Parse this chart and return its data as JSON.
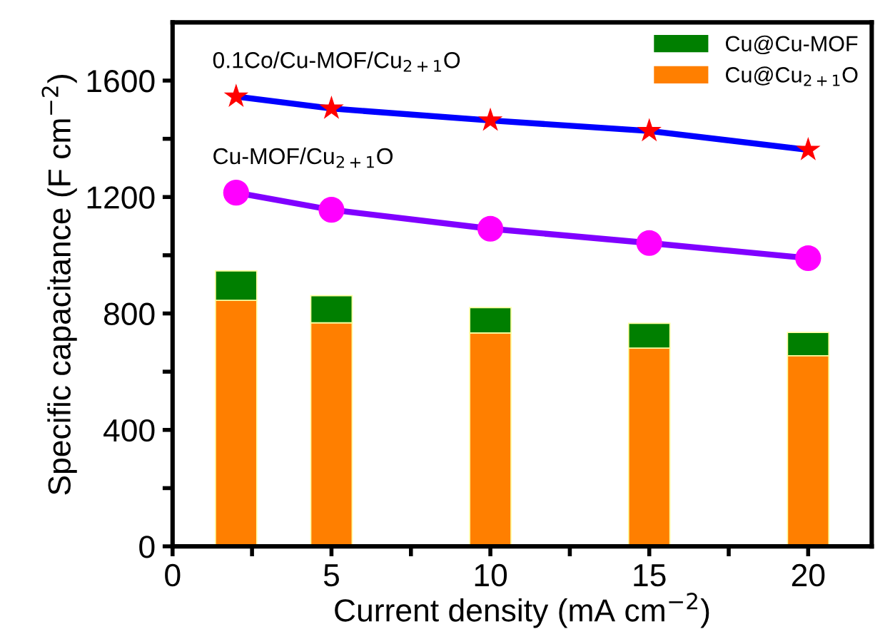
{
  "chart_data": {
    "type": "bar",
    "stacked": true,
    "xlabel": "Current density (mA cm$^{−2}$)",
    "ylabel": "Specific capacitance (F cm$^{−2}$)",
    "x": [
      2,
      5,
      10,
      15,
      20
    ],
    "series": [
      {
        "name": "Cu@Cu$_{2+1}$O",
        "color": "#ff7f00",
        "values": [
          845,
          768,
          733,
          681,
          655
        ]
      },
      {
        "name": "Cu@Cu-MOF",
        "color": "#007f00",
        "values": [
          101,
          93,
          87,
          85,
          80
        ]
      },
      {
        "name": "0.1Co/Cu-MOF/Cu$_{2+1}$O",
        "type": "line",
        "color": "#0000ff",
        "colors": [
          "#ff0000",
          "#ff0000",
          "#ff0000",
          "#ff0000",
          "#ff0000"
        ],
        "marker": "star",
        "values": [
          1545,
          1504,
          1463,
          1427,
          1362
        ]
      },
      {
        "name": "Cu-MOF/Cu$_{2+1}$O",
        "type": "line",
        "color": "#8000ff",
        "colors": [
          "#ff00ff",
          "#ff00ff",
          "#ff00ff",
          "#ff00ff",
          "#ff00ff"
        ],
        "marker": "circle",
        "values": [
          1215,
          1156,
          1091,
          1042,
          990
        ]
      }
    ],
    "xlim": [
      0,
      22
    ],
    "xticks": [
      0,
      {
        "value": 2.5,
        "label": null
      },
      5,
      {
        "value": 7.5,
        "label": null
      },
      10,
      {
        "value": 12.5,
        "label": null
      },
      15,
      {
        "value": 17.5,
        "label": null
      },
      20
    ],
    "ylim": [
      0,
      1800
    ],
    "yticks": [
      0,
      {
        "value": 200,
        "label": null
      },
      400,
      {
        "value": 600,
        "label": null
      },
      800,
      {
        "value": 1000,
        "label": null
      },
      1200,
      {
        "value": 1400,
        "label": null
      },
      1600
    ],
    "grid": false,
    "legend": "top right"
  }
}
